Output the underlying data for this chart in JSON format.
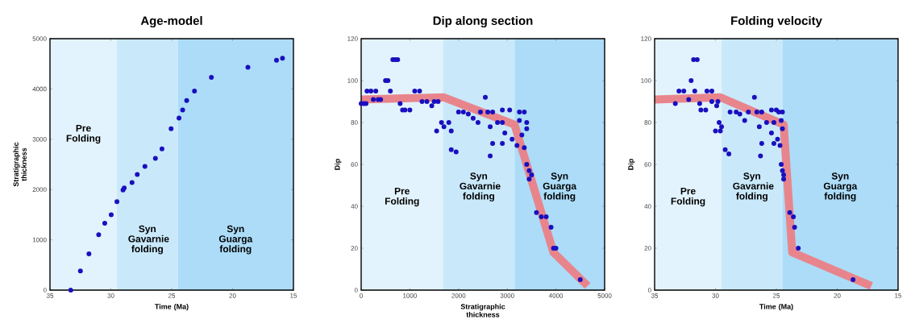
{
  "chart_data": [
    {
      "type": "scatter",
      "title": "Age-model",
      "xlabel": "Time (Ma)",
      "ylabel": "Stratigraphic thickness",
      "xlim": [
        35,
        15
      ],
      "xticks": [
        35,
        30,
        25,
        20,
        15
      ],
      "ylim": [
        0,
        5000
      ],
      "yticks": [
        0,
        1000,
        2000,
        3000,
        4000,
        5000
      ],
      "bands": [
        {
          "axis": "x",
          "from": 35,
          "to": 29.5,
          "label": "Pre Folding",
          "color": "#e3f3fd"
        },
        {
          "axis": "x",
          "from": 29.5,
          "to": 24.5,
          "label": "Syn Gavarnie folding",
          "color": "#c9e9fb"
        },
        {
          "axis": "x",
          "from": 24.5,
          "to": 15,
          "label": "Syn Guarga folding",
          "color": "#acdcf8"
        }
      ],
      "series": [
        {
          "marker": "circle",
          "color": "#1a0fbf",
          "x": [
            33.29,
            32.5,
            31.8,
            31,
            30.5,
            29.97,
            29.5,
            29,
            28.9,
            28.26,
            27.83,
            27.2,
            26.34,
            25.8,
            25.05,
            24.4,
            24.1,
            23.77,
            23.13,
            21.74,
            18.74,
            16.39,
            15.9
          ],
          "values": [
            0,
            380,
            720,
            1100,
            1330,
            1500,
            1760,
            1990,
            2030,
            2140,
            2300,
            2460,
            2620,
            2810,
            3210,
            3420,
            3580,
            3770,
            3960,
            4230,
            4430,
            4570,
            4610
          ]
        }
      ]
    },
    {
      "type": "scatter",
      "title": "Dip along section",
      "xlabel": "Stratigraphic thickness",
      "ylabel": "Dip",
      "xlim": [
        0,
        5000
      ],
      "xticks": [
        0,
        1000,
        2000,
        3000,
        4000,
        5000
      ],
      "ylim": [
        0,
        120
      ],
      "yticks": [
        0,
        20,
        40,
        60,
        80,
        100,
        120
      ],
      "bands": [
        {
          "axis": "x",
          "from": 0,
          "to": 1680,
          "label": "Pre Folding",
          "color": "#e3f3fd"
        },
        {
          "axis": "x",
          "from": 1680,
          "to": 3150,
          "label": "Syn Gavarnie folding",
          "color": "#c9e9fb"
        },
        {
          "axis": "x",
          "from": 3150,
          "to": 5000,
          "label": "Syn Guarga folding",
          "color": "#acdcf8"
        }
      ],
      "series": [
        {
          "type": "line",
          "marker": "none",
          "color": "#e8858c",
          "x": [
            0,
            1700,
            3150,
            3950,
            4650
          ],
          "values": [
            91,
            92,
            79,
            18,
            2
          ]
        },
        {
          "marker": "circle",
          "color": "#1a0fbf",
          "x": [
            0,
            50,
            100,
            120,
            200,
            300,
            250,
            350,
            400,
            500,
            550,
            600,
            650,
            700,
            750,
            800,
            850,
            900,
            1000,
            1100,
            1200,
            1250,
            1350,
            1450,
            1500,
            1580,
            1550,
            1650,
            1700,
            1800,
            1850,
            1850,
            1950,
            2000,
            2100,
            2200,
            2300,
            2400,
            2450,
            2550,
            2600,
            2650,
            2700,
            2650,
            2700,
            2800,
            2900,
            2900,
            2900,
            2950,
            3050,
            3100,
            3200,
            3250,
            3250,
            3300,
            3350,
            3350,
            3400,
            3400,
            3400,
            3450,
            3450,
            3500,
            3600,
            3700,
            3800,
            3900,
            3950,
            4000,
            4500
          ],
          "values": [
            89,
            89,
            89,
            95,
            95,
            95,
            91,
            91,
            91,
            100,
            100,
            95,
            110,
            110,
            110,
            89,
            86,
            86,
            86,
            95,
            95,
            90,
            90,
            88,
            90,
            90,
            76,
            80,
            78,
            80,
            76,
            67,
            66,
            85,
            85,
            84,
            82,
            80,
            85,
            92,
            85,
            78,
            85,
            64,
            70,
            80,
            80,
            86,
            70,
            75,
            86,
            72,
            69,
            81,
            85,
            74,
            85,
            68,
            80,
            77,
            60,
            57,
            53,
            55,
            37,
            35,
            35,
            30,
            20,
            20,
            5
          ]
        }
      ]
    },
    {
      "type": "scatter",
      "title": "Folding velocity",
      "xlabel": "Time (Ma)",
      "ylabel": "Dip",
      "xlim": [
        35,
        15
      ],
      "xticks": [
        35,
        30,
        25,
        20,
        15
      ],
      "ylim": [
        0,
        120
      ],
      "yticks": [
        0,
        20,
        40,
        60,
        80,
        100,
        120
      ],
      "bands": [
        {
          "axis": "x",
          "from": 35,
          "to": 29.5,
          "label": "Pre Folding",
          "color": "#e3f3fd"
        },
        {
          "axis": "x",
          "from": 29.5,
          "to": 24.5,
          "label": "Syn Gavarnie folding",
          "color": "#c9e9fb"
        },
        {
          "axis": "x",
          "from": 24.5,
          "to": 15,
          "label": "Syn Guarga folding",
          "color": "#acdcf8"
        }
      ],
      "series": [
        {
          "type": "line",
          "marker": "none",
          "color": "#e8858c",
          "x": [
            35,
            29.6,
            24.4,
            23.7,
            17.2
          ],
          "values": [
            91,
            92,
            79,
            18,
            2
          ]
        },
        {
          "marker": "circle",
          "color": "#1a0fbf",
          "x": [
            33.3,
            33,
            32.6,
            32.2,
            32,
            31.7,
            31.8,
            31.5,
            31.3,
            31.2,
            30.8,
            30.7,
            30.3,
            30.3,
            29.8,
            29.9,
            30,
            29.7,
            29.5,
            29.6,
            29.2,
            28.9,
            28.8,
            28.3,
            28,
            27.6,
            27.3,
            26.8,
            26.6,
            26.4,
            26.2,
            26.2,
            26.3,
            25.8,
            25.4,
            25.2,
            25.4,
            25,
            25.2,
            24.9,
            24.8,
            24.6,
            24.5,
            24.7,
            24.5,
            24.6,
            24.5,
            24.4,
            24.4,
            23.9,
            23.6,
            23.5,
            23.2,
            18.7
          ],
          "values": [
            89,
            95,
            95,
            91,
            100,
            95,
            110,
            110,
            89,
            86,
            86,
            95,
            95,
            90,
            90,
            88,
            76,
            80,
            78,
            76,
            67,
            65,
            85,
            85,
            84,
            81,
            85,
            92,
            85,
            78,
            85,
            70,
            64,
            80,
            86,
            80,
            75,
            86,
            70,
            72,
            85,
            81,
            85,
            69,
            77,
            60,
            57,
            53,
            55,
            37,
            35,
            30,
            20,
            5
          ]
        }
      ]
    }
  ]
}
